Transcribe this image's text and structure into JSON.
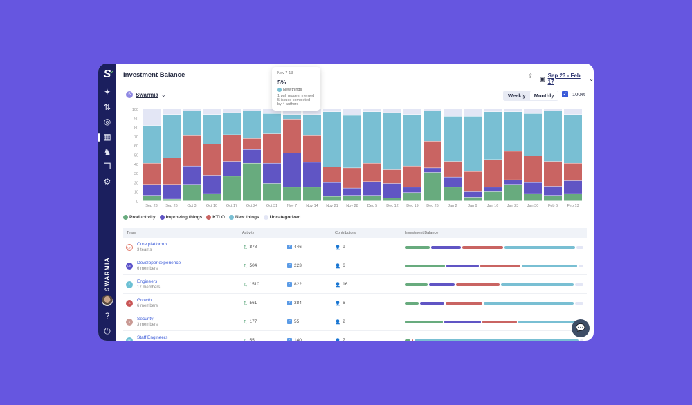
{
  "page": {
    "title": "Investment Balance",
    "team": "Swarmia",
    "team_initial": "S",
    "date_range": "Sep 23 - Feb 17",
    "export_icon": "share-icon",
    "calendar_icon": "calendar-icon",
    "period_toggle": [
      {
        "label": "Weekly",
        "selected": true
      },
      {
        "label": "Monthly",
        "selected": false
      }
    ],
    "percent_label": "100%",
    "percent_checked": true
  },
  "sidebar": {
    "brand": "SWARMIA",
    "icons": [
      "logo",
      "insights-icon",
      "pull-request-icon",
      "target-icon",
      "investment-icon",
      "chess-knight-icon",
      "cards-icon",
      "gear-icon"
    ],
    "bottom": [
      "avatar",
      "help-icon",
      "logout-icon"
    ]
  },
  "colors": {
    "Productivity": "#68ab7e",
    "Improving things": "#6055c4",
    "KTLO": "#c96462",
    "New things": "#79bfd3",
    "Uncategorized": "#e3e6f5",
    "accent": "#3a5ad8",
    "background": "#6656e0"
  },
  "tooltip": {
    "period": "Nov 7-13",
    "value": "5%",
    "category": "New things",
    "line1": "1 pull request merged",
    "line2": "5 issues completed",
    "line3": "by 4 authors"
  },
  "chart_data": {
    "type": "bar",
    "stacked": true,
    "ylim": [
      0,
      100
    ],
    "yticks": [
      0,
      10,
      20,
      30,
      40,
      50,
      60,
      70,
      80,
      90,
      100
    ],
    "categories": [
      "Sep 23",
      "Sep 26",
      "Oct 3",
      "Oct 10",
      "Oct 17",
      "Oct 24",
      "Oct 31",
      "Nov 7",
      "Nov 14",
      "Nov 21",
      "Nov 28",
      "Dec 5",
      "Dec 12",
      "Dec 19",
      "Dec 26",
      "Jan 2",
      "Jan 9",
      "Jan 16",
      "Jan 23",
      "Jan 30",
      "Feb 6",
      "Feb 13"
    ],
    "legend_position": "bottom-left",
    "series": [
      {
        "name": "Productivity",
        "values": [
          6,
          2,
          18,
          8,
          27,
          41,
          19,
          15,
          15,
          5,
          6,
          6,
          3,
          9,
          31,
          15,
          4,
          10,
          18,
          8,
          6,
          8
        ]
      },
      {
        "name": "Improving things",
        "values": [
          12,
          16,
          20,
          20,
          16,
          15,
          22,
          37,
          27,
          15,
          8,
          15,
          16,
          6,
          5,
          11,
          6,
          5,
          5,
          12,
          10,
          14
        ]
      },
      {
        "name": "KTLO",
        "values": [
          23,
          29,
          33,
          34,
          29,
          12,
          32,
          37,
          29,
          17,
          22,
          20,
          15,
          23,
          29,
          17,
          22,
          30,
          31,
          29,
          27,
          19
        ]
      },
      {
        "name": "New things",
        "values": [
          41,
          47,
          27,
          32,
          24,
          30,
          22,
          5,
          23,
          60,
          57,
          56,
          62,
          56,
          33,
          49,
          60,
          52,
          43,
          46,
          55,
          53
        ]
      },
      {
        "name": "Uncategorized",
        "values": [
          18,
          6,
          2,
          6,
          4,
          2,
          5,
          6,
          6,
          3,
          7,
          3,
          4,
          6,
          2,
          8,
          8,
          3,
          3,
          5,
          2,
          6
        ]
      }
    ]
  },
  "table": {
    "headers": [
      "Team",
      "Activity",
      "Contributors",
      "Investment Balance"
    ],
    "rows": [
      {
        "initials": "CP",
        "name": "Core platform",
        "sub": "3 teams",
        "prs": "878",
        "issues": "446",
        "contributors": "9",
        "avatar_color": "#ffffff",
        "balance": [
          14,
          17,
          23,
          40,
          4
        ],
        "expandable": true
      },
      {
        "initials": "DE",
        "name": "Developer experience",
        "sub": "6 members",
        "prs": "504",
        "issues": "223",
        "contributors": "6",
        "avatar_color": "#5b52c9",
        "balance": [
          23,
          19,
          23,
          32,
          3
        ]
      },
      {
        "initials": "E",
        "name": "Engineers",
        "sub": "17 members",
        "prs": "1510",
        "issues": "822",
        "contributors": "16",
        "avatar_color": "#6cc0d4",
        "balance": [
          13,
          15,
          25,
          42,
          5
        ]
      },
      {
        "initials": "G",
        "name": "Growth",
        "sub": "6 members",
        "prs": "561",
        "issues": "384",
        "contributors": "6",
        "avatar_color": "#c95555",
        "balance": [
          8,
          14,
          21,
          52,
          5
        ]
      },
      {
        "initials": "S",
        "name": "Security",
        "sub": "3 members",
        "prs": "177",
        "issues": "55",
        "contributors": "2",
        "avatar_color": "#c99a94",
        "balance": [
          22,
          21,
          20,
          35,
          2
        ]
      },
      {
        "initials": "SE",
        "name": "Staff Engineers",
        "sub": "",
        "prs": "55",
        "issues": "140",
        "contributors": "7",
        "avatar_color": "#6cc0d4",
        "balance": [
          3,
          0,
          1,
          94,
          2
        ]
      }
    ]
  }
}
